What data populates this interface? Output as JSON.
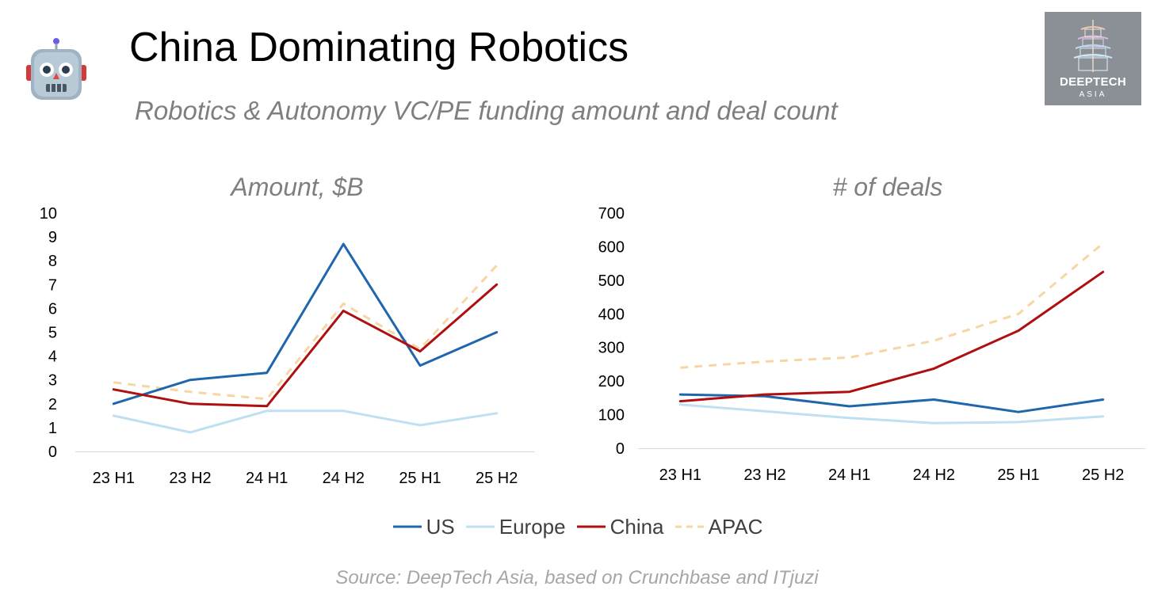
{
  "header": {
    "title": "China Dominating Robotics",
    "subtitle": "Robotics & Autonomy VC/PE funding amount and deal count",
    "icon": "robot-face-icon"
  },
  "logo": {
    "line1": "DEEPTECH",
    "line2": "ASIA",
    "icon": "pagoda-icon",
    "background": "#8b9096"
  },
  "colors": {
    "US": "#1f66ad",
    "Europe": "#bfe0f2",
    "China": "#b00f10",
    "APAC": "#f7d6a6"
  },
  "legend": [
    {
      "name": "US",
      "color": "#1f66ad",
      "dashed": false
    },
    {
      "name": "Europe",
      "color": "#bfe0f2",
      "dashed": false
    },
    {
      "name": "China",
      "color": "#b00f10",
      "dashed": false
    },
    {
      "name": "APAC",
      "color": "#f7d6a6",
      "dashed": true
    }
  ],
  "source": "Source: DeepTech Asia, based on Crunchbase and ITjuzi",
  "chart_data": [
    {
      "type": "line",
      "title": "Amount, $B",
      "categories": [
        "23 H1",
        "23 H2",
        "24 H1",
        "24 H2",
        "25 H1",
        "25 H2"
      ],
      "ylim": [
        0,
        10
      ],
      "yticks": [
        0,
        1,
        2,
        3,
        4,
        5,
        6,
        7,
        8,
        9,
        10
      ],
      "series": [
        {
          "name": "US",
          "values": [
            2.0,
            3.0,
            3.3,
            8.7,
            3.6,
            5.0
          ]
        },
        {
          "name": "Europe",
          "values": [
            1.5,
            0.8,
            1.7,
            1.7,
            1.1,
            1.6
          ]
        },
        {
          "name": "China",
          "values": [
            2.6,
            2.0,
            1.9,
            5.9,
            4.2,
            7.0
          ]
        },
        {
          "name": "APAC",
          "values": [
            2.9,
            2.5,
            2.2,
            6.2,
            4.3,
            7.8
          ]
        }
      ]
    },
    {
      "type": "line",
      "title": "# of deals",
      "categories": [
        "23 H1",
        "23 H2",
        "24 H1",
        "24 H2",
        "25 H1",
        "25 H2"
      ],
      "ylim": [
        0,
        700
      ],
      "yticks": [
        0,
        100,
        200,
        300,
        400,
        500,
        600,
        700
      ],
      "series": [
        {
          "name": "US",
          "values": [
            160,
            155,
            125,
            145,
            108,
            145
          ]
        },
        {
          "name": "Europe",
          "values": [
            130,
            110,
            90,
            75,
            78,
            95
          ]
        },
        {
          "name": "China",
          "values": [
            140,
            160,
            168,
            237,
            350,
            525
          ]
        },
        {
          "name": "APAC",
          "values": [
            240,
            258,
            270,
            320,
            400,
            610
          ]
        }
      ]
    }
  ]
}
